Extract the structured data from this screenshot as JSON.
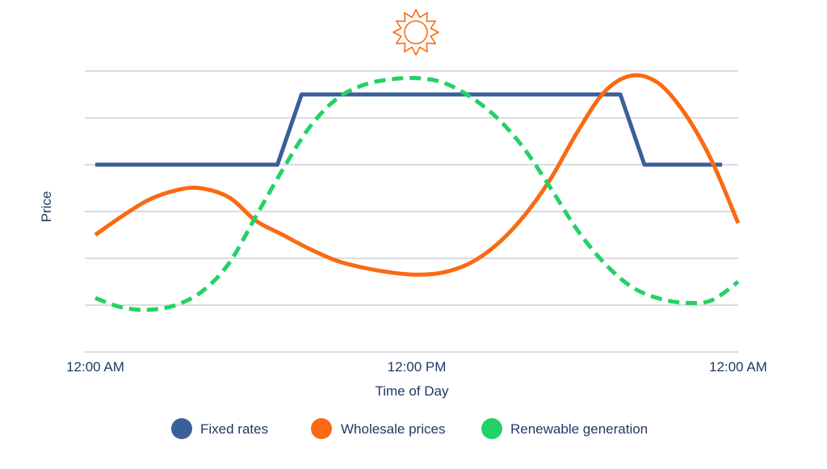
{
  "chart_data": {
    "type": "line",
    "title": "",
    "xlabel": "Time of Day",
    "ylabel": "Price",
    "x_ticks": [
      {
        "hour": 0,
        "label": "12:00 AM"
      },
      {
        "hour": 12,
        "label": "12:00 PM"
      },
      {
        "hour": 24,
        "label": "12:00 AM"
      }
    ],
    "xlim": [
      0,
      24
    ],
    "ylim": [
      0,
      6
    ],
    "grid": true,
    "legend_position": "bottom",
    "icon": "sun-icon",
    "series": [
      {
        "name": "Fixed rates",
        "color": "#3a5f9a",
        "style": "solid",
        "x": [
          0,
          6.8,
          7.7,
          19.6,
          20.5,
          23.4
        ],
        "y": [
          4,
          4,
          5.5,
          5.5,
          4,
          4
        ]
      },
      {
        "name": "Wholesale prices",
        "color": "#f96a12",
        "style": "solid",
        "x": [
          0,
          1,
          2,
          3,
          3.9,
          5,
          6,
          7,
          8,
          9,
          10,
          11,
          12,
          13,
          14,
          15,
          16,
          17,
          18,
          19,
          20,
          21,
          22,
          23,
          24
        ],
        "y": [
          2.5,
          2.9,
          3.25,
          3.45,
          3.5,
          3.3,
          2.8,
          2.5,
          2.2,
          1.95,
          1.8,
          1.7,
          1.65,
          1.7,
          1.9,
          2.3,
          2.9,
          3.7,
          4.7,
          5.55,
          5.9,
          5.75,
          5.1,
          4.1,
          2.75
        ]
      },
      {
        "name": "Renewable generation",
        "color": "#22d266",
        "style": "dashed",
        "x": [
          0,
          1,
          2,
          3,
          4,
          5,
          6,
          7,
          8,
          9,
          10,
          11,
          12,
          13,
          14,
          15,
          16,
          17,
          18,
          19,
          20,
          21,
          22,
          23,
          24
        ],
        "y": [
          1.15,
          0.95,
          0.9,
          1.0,
          1.3,
          1.9,
          2.9,
          3.9,
          4.8,
          5.4,
          5.7,
          5.82,
          5.85,
          5.75,
          5.45,
          5.0,
          4.35,
          3.5,
          2.6,
          1.9,
          1.4,
          1.15,
          1.05,
          1.1,
          1.5
        ]
      }
    ]
  }
}
